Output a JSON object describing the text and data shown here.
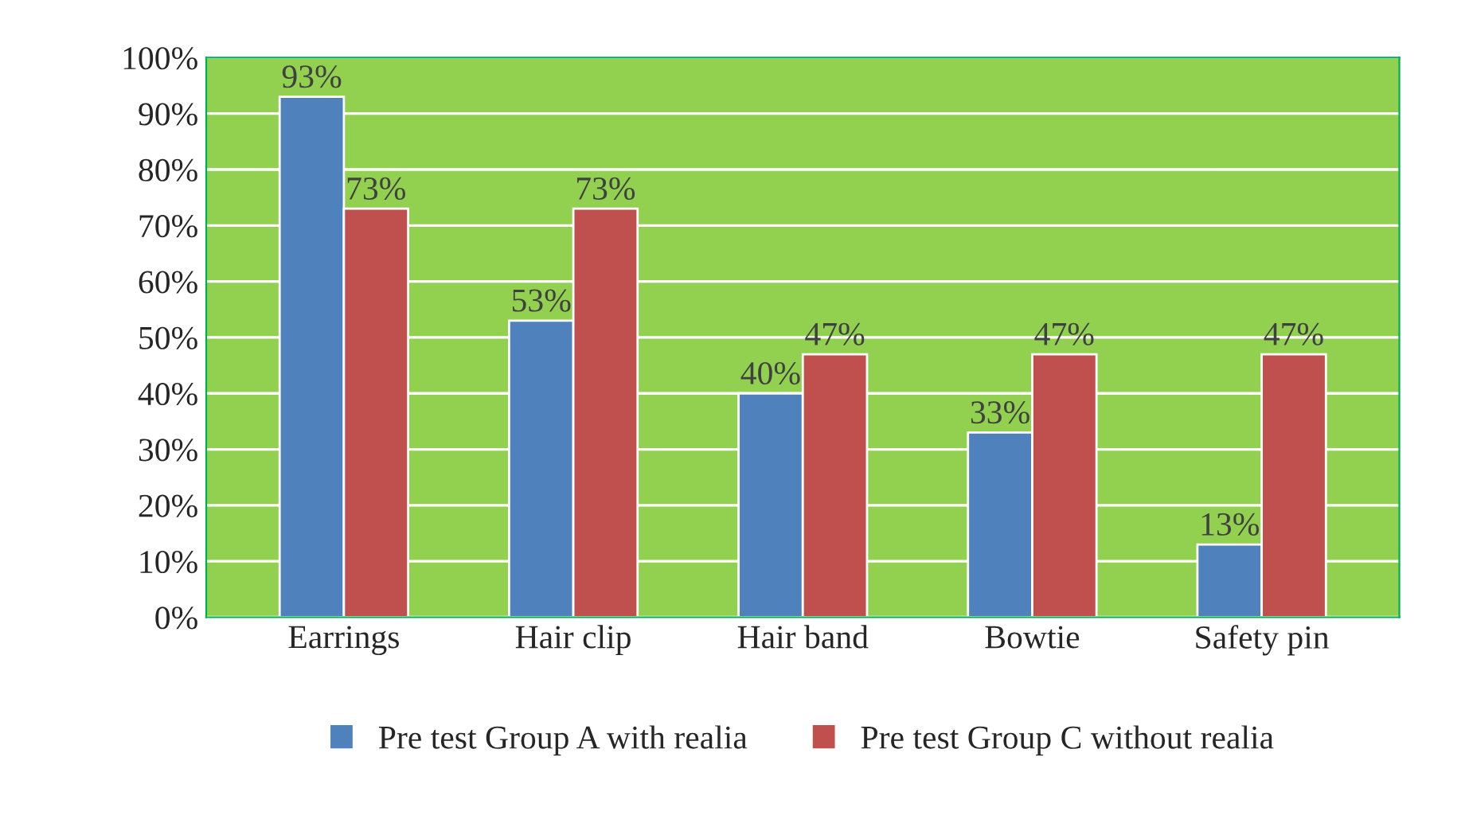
{
  "chart_data": {
    "type": "bar",
    "categories": [
      "Earrings",
      "Hair clip",
      "Hair band",
      "Bowtie",
      "Safety pin"
    ],
    "series": [
      {
        "name": "Pre test Group A with realia",
        "color": "#4f81bd",
        "values": [
          93,
          53,
          40,
          33,
          13
        ],
        "value_labels": [
          "93%",
          "53%",
          "40%",
          "33%",
          "13%"
        ]
      },
      {
        "name": "Pre test Group C without realia",
        "color": "#c0504d",
        "values": [
          73,
          73,
          47,
          47,
          47
        ],
        "value_labels": [
          "73%",
          "73%",
          "47%",
          "47%",
          "47%"
        ]
      }
    ],
    "ylim": [
      0,
      100
    ],
    "yticks": [
      {
        "value": 0,
        "label": "0%"
      },
      {
        "value": 10,
        "label": "10%"
      },
      {
        "value": 20,
        "label": "20%"
      },
      {
        "value": 30,
        "label": "30%"
      },
      {
        "value": 40,
        "label": "40%"
      },
      {
        "value": 50,
        "label": "50%"
      },
      {
        "value": 60,
        "label": "60%"
      },
      {
        "value": 70,
        "label": "70%"
      },
      {
        "value": 80,
        "label": "80%"
      },
      {
        "value": 90,
        "label": "90%"
      },
      {
        "value": 100,
        "label": "100%"
      }
    ],
    "grid": "y",
    "legend": "bottom"
  }
}
